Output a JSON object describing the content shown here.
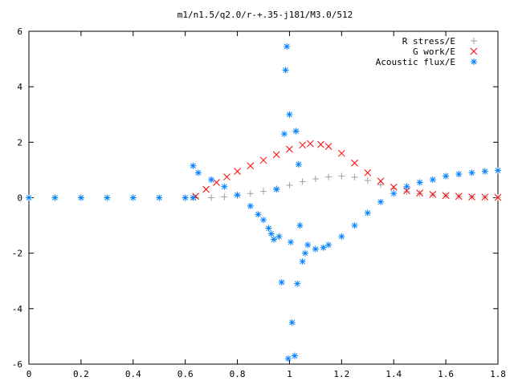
{
  "chart_data": {
    "type": "scatter",
    "title": "m1/n1.5/q2.0/r-+.35-j181/M3.0/512",
    "xlabel": "",
    "ylabel": "",
    "xlim": [
      0,
      1.8
    ],
    "ylim": [
      -6,
      6
    ],
    "grid": false,
    "legend_position": "top-right",
    "x_ticks": [
      "0",
      "0.2",
      "0.4",
      "0.6",
      "0.8",
      "1",
      "1.2",
      "1.4",
      "1.6",
      "1.8"
    ],
    "y_ticks": [
      "6",
      "4",
      "2",
      "0",
      "-2",
      "-4",
      "-6"
    ],
    "series": [
      {
        "name": "R stress/E",
        "marker": "plus",
        "color": "#a0a0a0",
        "points": [
          [
            0.64,
            0.0
          ],
          [
            0.7,
            0.0
          ],
          [
            0.75,
            0.03
          ],
          [
            0.8,
            0.08
          ],
          [
            0.85,
            0.15
          ],
          [
            0.9,
            0.23
          ],
          [
            0.95,
            0.33
          ],
          [
            1.0,
            0.45
          ],
          [
            1.05,
            0.58
          ],
          [
            1.1,
            0.68
          ],
          [
            1.15,
            0.75
          ],
          [
            1.2,
            0.78
          ],
          [
            1.25,
            0.74
          ],
          [
            1.3,
            0.62
          ],
          [
            1.35,
            0.47
          ],
          [
            1.4,
            0.33
          ],
          [
            1.45,
            0.22
          ],
          [
            1.5,
            0.15
          ],
          [
            1.55,
            0.1
          ],
          [
            1.6,
            0.07
          ],
          [
            1.65,
            0.05
          ],
          [
            1.7,
            0.03
          ],
          [
            1.75,
            0.02
          ],
          [
            1.8,
            0.01
          ]
        ]
      },
      {
        "name": "G work/E",
        "marker": "cross",
        "color": "#ff0000",
        "points": [
          [
            0.64,
            0.05
          ],
          [
            0.68,
            0.3
          ],
          [
            0.72,
            0.55
          ],
          [
            0.76,
            0.75
          ],
          [
            0.8,
            0.95
          ],
          [
            0.85,
            1.15
          ],
          [
            0.9,
            1.35
          ],
          [
            0.95,
            1.55
          ],
          [
            1.0,
            1.75
          ],
          [
            1.05,
            1.9
          ],
          [
            1.08,
            1.95
          ],
          [
            1.12,
            1.92
          ],
          [
            1.15,
            1.85
          ],
          [
            1.2,
            1.6
          ],
          [
            1.25,
            1.25
          ],
          [
            1.3,
            0.9
          ],
          [
            1.35,
            0.6
          ],
          [
            1.4,
            0.38
          ],
          [
            1.45,
            0.25
          ],
          [
            1.5,
            0.17
          ],
          [
            1.55,
            0.12
          ],
          [
            1.6,
            0.08
          ],
          [
            1.65,
            0.05
          ],
          [
            1.7,
            0.03
          ],
          [
            1.75,
            0.02
          ],
          [
            1.8,
            0.01
          ]
        ]
      },
      {
        "name": "Acoustic flux/E",
        "marker": "star",
        "color": "#0080ff",
        "points": [
          [
            0.0,
            0.0
          ],
          [
            0.1,
            0.0
          ],
          [
            0.2,
            0.0
          ],
          [
            0.3,
            0.0
          ],
          [
            0.4,
            0.0
          ],
          [
            0.5,
            0.0
          ],
          [
            0.6,
            0.0
          ],
          [
            0.63,
            0.0
          ],
          [
            0.63,
            1.15
          ],
          [
            0.65,
            0.9
          ],
          [
            0.7,
            0.65
          ],
          [
            0.75,
            0.4
          ],
          [
            0.8,
            0.1
          ],
          [
            0.85,
            -0.3
          ],
          [
            0.88,
            -0.6
          ],
          [
            0.9,
            -0.8
          ],
          [
            0.92,
            -1.1
          ],
          [
            0.93,
            -1.3
          ],
          [
            0.94,
            -1.5
          ],
          [
            0.95,
            0.3
          ],
          [
            0.96,
            -1.4
          ],
          [
            0.97,
            -3.05
          ],
          [
            0.98,
            2.3
          ],
          [
            0.985,
            4.6
          ],
          [
            0.99,
            5.45
          ],
          [
            0.995,
            -5.8
          ],
          [
            1.0,
            3.0
          ],
          [
            1.005,
            -1.6
          ],
          [
            1.01,
            -4.5
          ],
          [
            1.02,
            -5.7
          ],
          [
            1.025,
            2.4
          ],
          [
            1.03,
            -3.1
          ],
          [
            1.035,
            1.2
          ],
          [
            1.04,
            -1.0
          ],
          [
            1.05,
            -2.3
          ],
          [
            1.06,
            -2.0
          ],
          [
            1.07,
            -1.7
          ],
          [
            1.1,
            -1.85
          ],
          [
            1.13,
            -1.8
          ],
          [
            1.15,
            -1.7
          ],
          [
            1.2,
            -1.4
          ],
          [
            1.25,
            -1.0
          ],
          [
            1.3,
            -0.55
          ],
          [
            1.35,
            -0.15
          ],
          [
            1.4,
            0.15
          ],
          [
            1.45,
            0.4
          ],
          [
            1.5,
            0.55
          ],
          [
            1.55,
            0.65
          ],
          [
            1.6,
            0.78
          ],
          [
            1.65,
            0.85
          ],
          [
            1.7,
            0.9
          ],
          [
            1.75,
            0.95
          ],
          [
            1.8,
            0.98
          ]
        ]
      }
    ]
  }
}
